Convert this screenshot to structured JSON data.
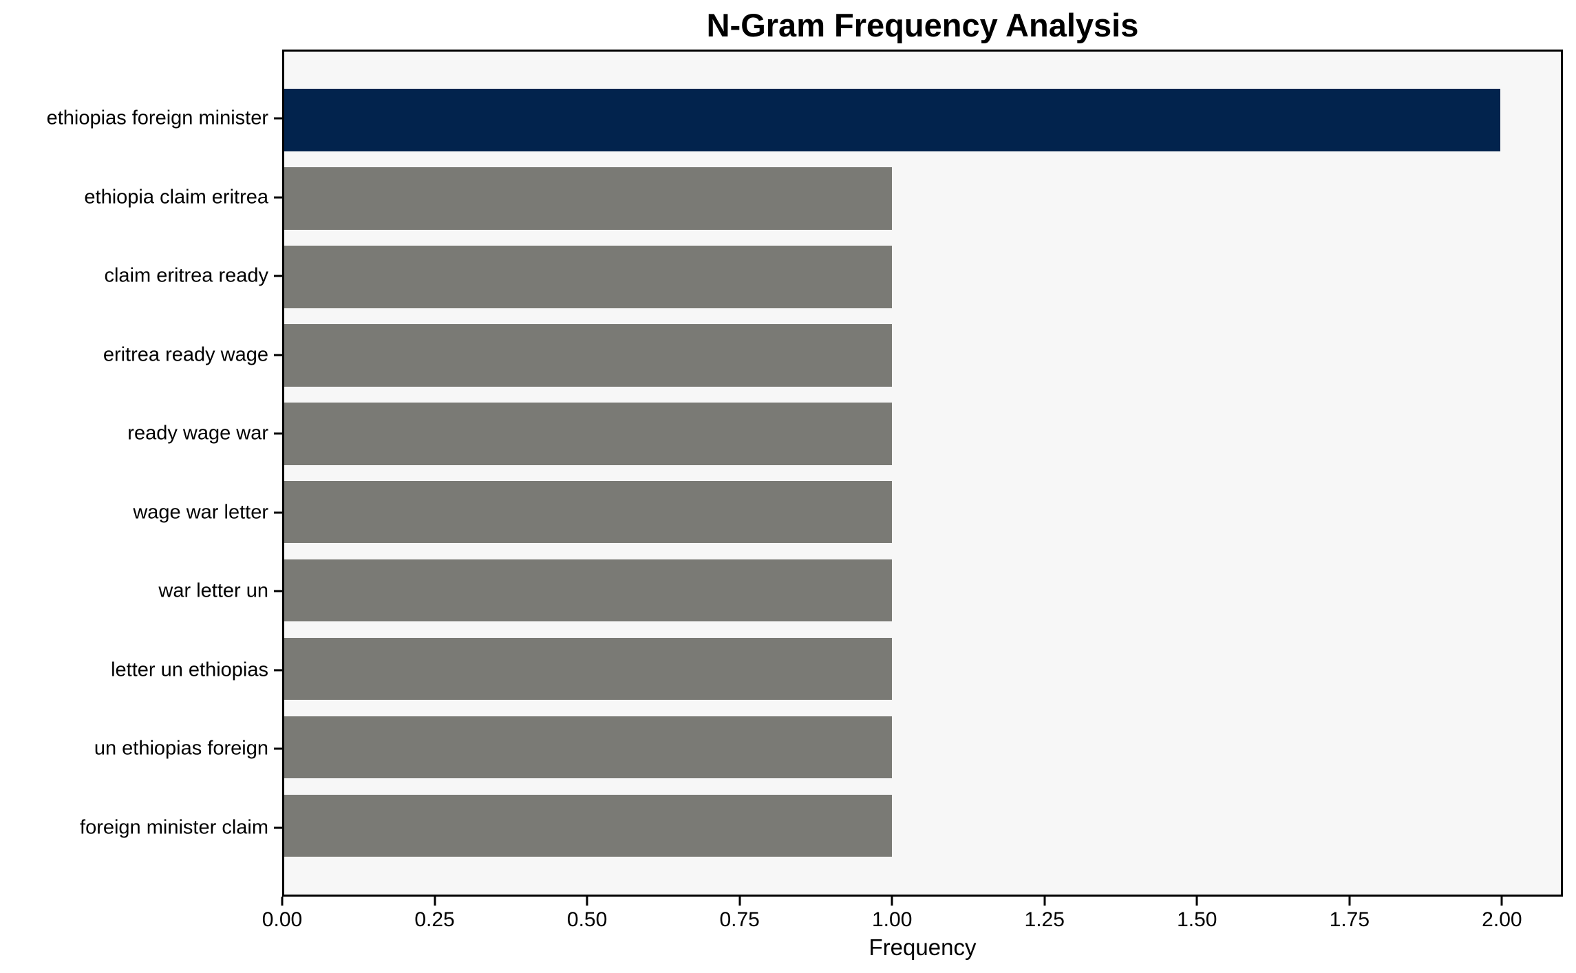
{
  "chart_data": {
    "type": "bar",
    "orientation": "horizontal",
    "title": "N-Gram Frequency Analysis",
    "xlabel": "Frequency",
    "ylabel": "",
    "categories": [
      "ethiopias foreign minister",
      "ethiopia claim eritrea",
      "claim eritrea ready",
      "eritrea ready wage",
      "ready wage war",
      "wage war letter",
      "war letter un",
      "letter un ethiopias",
      "un ethiopias foreign",
      "foreign minister claim"
    ],
    "values": [
      2,
      1,
      1,
      1,
      1,
      1,
      1,
      1,
      1,
      1
    ],
    "xlim": [
      0,
      2.1
    ],
    "xticks": [
      0,
      0.25,
      0.5,
      0.75,
      1.0,
      1.25,
      1.5,
      1.75,
      2.0
    ],
    "xtick_labels": [
      "0.00",
      "0.25",
      "0.50",
      "0.75",
      "1.00",
      "1.25",
      "1.50",
      "1.75",
      "2.00"
    ],
    "grid": false,
    "legend_position": "none",
    "colors": {
      "highlight_bar": "#02234d",
      "bar": "#7a7a75",
      "plot_bg": "#f7f7f7",
      "figure_bg": "#ffffff",
      "spine": "#000000",
      "text": "#000000"
    }
  }
}
